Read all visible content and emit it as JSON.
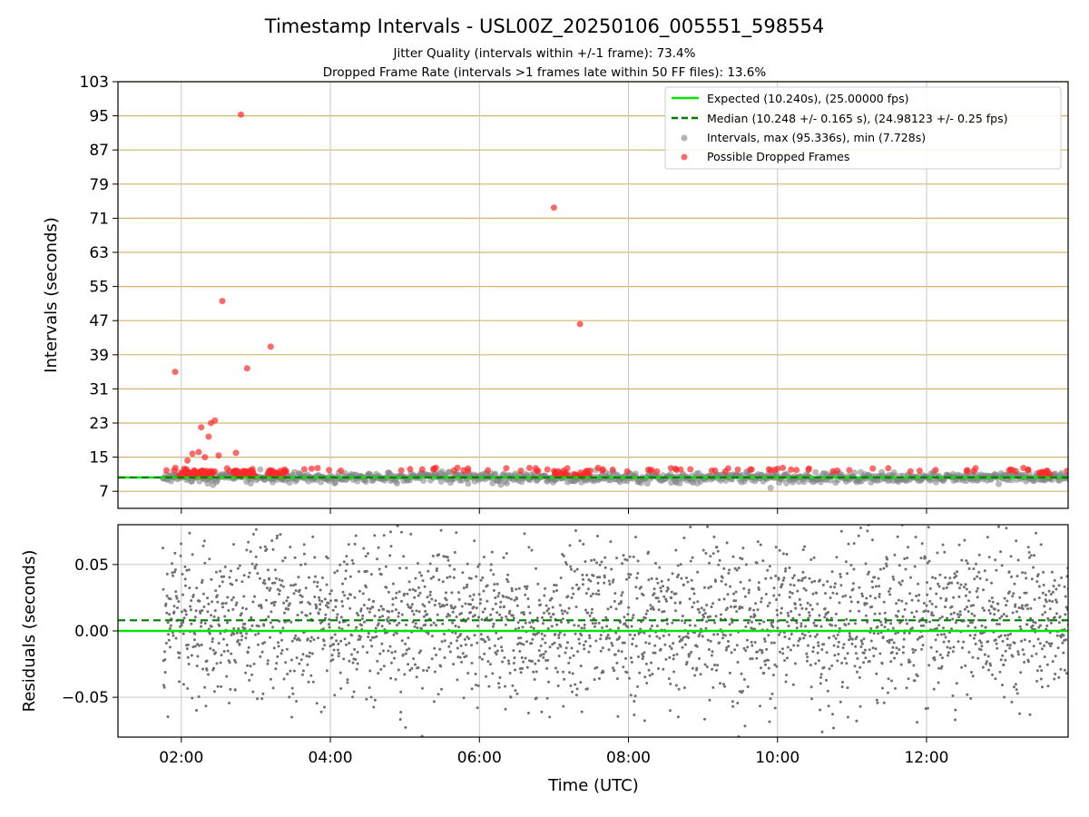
{
  "chart_data": {
    "type": "scatter",
    "title": "Timestamp Intervals - USL00Z_20250106_005551_598554",
    "subtitle_lines": [
      "Jitter Quality (intervals within +/-1 frame): 73.4%",
      "Dropped Frame Rate (intervals >1 frames late within 50 FF files): 13.6%"
    ],
    "colors": {
      "expected": "#00e600",
      "median": "#007a00",
      "intervals": "#808080",
      "dropped": "#ff2a2a",
      "hgrid": "#d4b66a",
      "vgrid": "#c8c8c8",
      "residuals": "#707070"
    },
    "top_panel": {
      "ylabel": "Intervals (seconds)",
      "ylim": [
        3,
        103
      ],
      "yticks": [
        "103",
        "95",
        "87",
        "79",
        "71",
        "63",
        "55",
        "47",
        "39",
        "31",
        "23",
        "15",
        "7"
      ],
      "xlim_hours": [
        1.15,
        13.9
      ],
      "expected": 10.24,
      "median": 10.248,
      "legend_location": "top-right",
      "legend": [
        "Expected (10.240s), (25.00000 fps)",
        "Median (10.248 +/- 0.165 s), (24.98123 +/- 0.25 fps)",
        "Intervals, max (95.336s), min (7.728s)",
        "Possible Dropped Frames"
      ],
      "dropped_outliers": [
        {
          "x": "01:55",
          "y": 35.0
        },
        {
          "x": "02:05",
          "y": 14.2
        },
        {
          "x": "02:09",
          "y": 15.8
        },
        {
          "x": "02:14",
          "y": 16.2
        },
        {
          "x": "02:16",
          "y": 22.0
        },
        {
          "x": "02:19",
          "y": 15.0
        },
        {
          "x": "02:22",
          "y": 19.8
        },
        {
          "x": "02:24",
          "y": 23.0
        },
        {
          "x": "02:27",
          "y": 23.6
        },
        {
          "x": "02:30",
          "y": 15.4
        },
        {
          "x": "02:33",
          "y": 51.6
        },
        {
          "x": "02:44",
          "y": 16.0
        },
        {
          "x": "02:48",
          "y": 95.3
        },
        {
          "x": "02:53",
          "y": 35.8
        },
        {
          "x": "03:12",
          "y": 40.9
        },
        {
          "x": "07:00",
          "y": 73.5
        },
        {
          "x": "07:21",
          "y": 46.2
        }
      ]
    },
    "bottom_panel": {
      "ylabel": "Residuals (seconds)",
      "ylim": [
        -0.08,
        0.08
      ],
      "yticks": [
        "0.05",
        "0.00",
        "−0.05"
      ],
      "expected_residual": 0.0,
      "median_residual": 0.008,
      "residual_spread_sd": 0.03
    },
    "xlabel": "Time (UTC)",
    "xticks": [
      "02:00",
      "04:00",
      "06:00",
      "08:00",
      "10:00",
      "12:00"
    ],
    "data_start": "01:45",
    "data_end": "13:55",
    "grid": true
  }
}
